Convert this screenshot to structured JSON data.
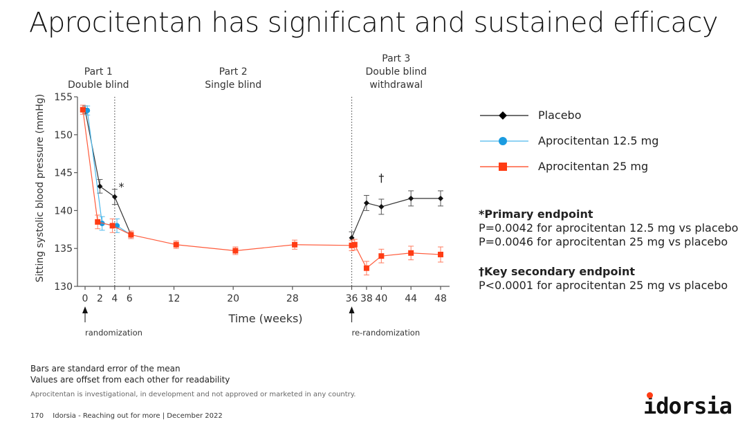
{
  "slide": {
    "title": "Aprocitentan has significant and sustained efficacy",
    "footnotes": [
      "Bars are standard error of the mean",
      "Values are offset from each other for readability"
    ],
    "disclaimer": "Aprocitentan is investigational, in development and not approved or marketed in any country.",
    "page_number": "170",
    "footer_text": "Idorsia - Reaching out for more | December 2022",
    "logo_text": "idorsia",
    "brand_color": "#ff3c14"
  },
  "notes": {
    "primary_heading": "*Primary endpoint",
    "primary_lines": [
      "P=0.0042 for aprocitentan 12.5 mg vs placebo",
      "P=0.0046 for aprocitentan 25 mg vs placebo"
    ],
    "secondary_heading": "†Key secondary endpoint",
    "secondary_lines": [
      "P<0.0001 for aprocitentan 25 mg vs placebo"
    ]
  },
  "chart_data": {
    "type": "line",
    "title": "",
    "xlabel": "Time (weeks)",
    "ylabel": "Sitting systolic blood pressure (mmHg)",
    "xlim": [
      0,
      48
    ],
    "ylim": [
      130,
      155
    ],
    "xticks": [
      0,
      2,
      4,
      6,
      12,
      20,
      28,
      36,
      38,
      40,
      44,
      48
    ],
    "yticks": [
      130,
      135,
      140,
      145,
      150,
      155
    ],
    "grid": false,
    "legend": "right",
    "phases": [
      {
        "label_line1": "Part 1",
        "label_line2": "Double blind",
        "label_line3": "",
        "center_week": 1.8
      },
      {
        "label_line1": "Part 2",
        "label_line2": "Single blind",
        "label_line3": "",
        "center_week": 20
      },
      {
        "label_line1": "Part 3",
        "label_line2": "Double blind",
        "label_line3": "withdrawal",
        "center_week": 42
      }
    ],
    "dividers_weeks": [
      4,
      36
    ],
    "arrows": [
      {
        "week": 0,
        "label": "randomization"
      },
      {
        "week": 36,
        "label": "re-randomization"
      }
    ],
    "annotations": [
      {
        "text": "*",
        "week": 4.9,
        "value": 143.1
      },
      {
        "text": "†",
        "week": 40,
        "value": 144.3
      }
    ],
    "series": [
      {
        "name": "Placebo",
        "color": "#1a1a1a",
        "marker": "diamond",
        "points": [
          {
            "x": 0,
            "y": 153.3,
            "se": 0.5
          },
          {
            "x": 2,
            "y": 143.2,
            "se": 0.9
          },
          {
            "x": 4,
            "y": 141.8,
            "se": 1.0
          },
          {
            "x": 36,
            "y": 136.4,
            "se": 0.8
          },
          {
            "x": 38,
            "y": 141.0,
            "se": 1.0
          },
          {
            "x": 40,
            "y": 140.5,
            "se": 1.0
          },
          {
            "x": 44,
            "y": 141.6,
            "se": 1.0
          },
          {
            "x": 48,
            "y": 141.6,
            "se": 1.0
          }
        ]
      },
      {
        "name": "Aprocitentan 12.5 mg",
        "color": "#1a9be0",
        "marker": "circle",
        "points": [
          {
            "x": 0.3,
            "y": 153.2,
            "se": 0.6
          },
          {
            "x": 2.3,
            "y": 138.3,
            "se": 0.9
          },
          {
            "x": 4.3,
            "y": 138.0,
            "se": 0.9
          },
          {
            "x": 6.2,
            "y": 136.8,
            "se": 0.5
          }
        ]
      },
      {
        "name": "Aprocitentan 25 mg",
        "color": "#ff3c14",
        "marker": "square",
        "points": [
          {
            "x": -0.3,
            "y": 153.3,
            "se": 0.6
          },
          {
            "x": 1.7,
            "y": 138.5,
            "se": 0.9
          },
          {
            "x": 3.7,
            "y": 138.0,
            "se": 0.9
          },
          {
            "x": 6.2,
            "y": 136.8,
            "se": 0.5
          },
          {
            "x": 12.3,
            "y": 135.5,
            "se": 0.5
          },
          {
            "x": 20.3,
            "y": 134.7,
            "se": 0.5
          },
          {
            "x": 28.3,
            "y": 135.5,
            "se": 0.6
          },
          {
            "x": 36,
            "y": 135.4,
            "se": 0.7
          },
          {
            "x": 36.4,
            "y": 135.5,
            "se": 0.7
          },
          {
            "x": 38,
            "y": 132.4,
            "se": 0.9
          },
          {
            "x": 40,
            "y": 134.0,
            "se": 0.9
          },
          {
            "x": 44,
            "y": 134.4,
            "se": 0.9
          },
          {
            "x": 48,
            "y": 134.2,
            "se": 1.0
          }
        ]
      }
    ]
  }
}
